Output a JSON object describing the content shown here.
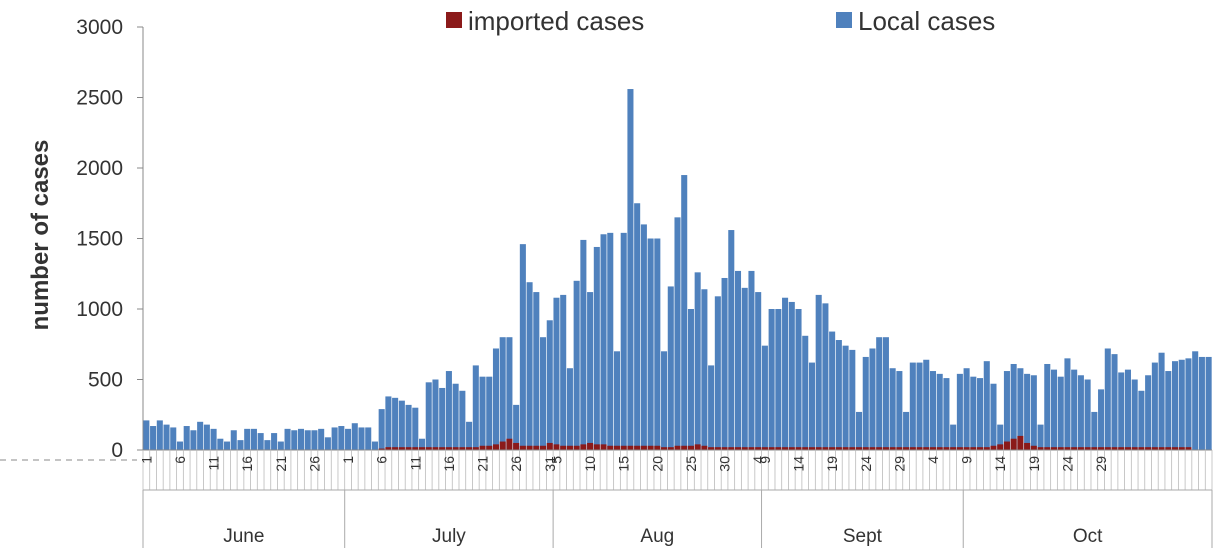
{
  "chart_data": {
    "type": "bar",
    "stacked": true,
    "title": "",
    "xlabel": "",
    "ylabel": "number of cases",
    "ylim": [
      0,
      3000
    ],
    "yticks": [
      0,
      500,
      1000,
      1500,
      2000,
      2500,
      3000
    ],
    "grid": false,
    "legend_position": "top",
    "colors": {
      "imported": "#8B1A1A",
      "local": "#4F81BD"
    },
    "series": [
      {
        "name": "imported cases",
        "values": [
          0,
          0,
          0,
          0,
          0,
          0,
          0,
          0,
          0,
          0,
          0,
          0,
          0,
          0,
          0,
          0,
          0,
          0,
          0,
          0,
          0,
          0,
          0,
          0,
          0,
          0,
          0,
          0,
          0,
          0,
          0,
          0,
          0,
          0,
          0,
          10,
          20,
          20,
          20,
          20,
          20,
          20,
          20,
          20,
          20,
          20,
          20,
          20,
          20,
          20,
          30,
          30,
          40,
          60,
          80,
          50,
          30,
          30,
          30,
          30,
          50,
          40,
          30,
          30,
          30,
          40,
          50,
          40,
          40,
          30,
          30,
          30,
          30,
          30,
          30,
          30,
          30,
          20,
          20,
          30,
          30,
          30,
          40,
          30,
          20,
          20,
          20,
          20,
          20,
          20,
          20,
          20,
          20,
          20,
          20,
          20,
          20,
          20,
          20,
          20,
          20,
          20,
          20,
          20,
          20,
          20,
          20,
          20,
          20,
          20,
          20,
          20,
          20,
          20,
          20,
          20,
          20,
          20,
          20,
          20,
          20,
          20,
          20,
          20,
          20,
          20,
          30,
          40,
          60,
          80,
          100,
          50,
          30,
          20,
          20,
          20,
          20,
          20,
          20,
          20,
          20,
          20,
          20,
          20,
          20,
          20,
          20,
          20,
          20,
          20,
          20,
          20,
          20,
          20,
          20,
          20
        ]
      },
      {
        "name": "Local cases",
        "values": [
          210,
          170,
          210,
          180,
          160,
          60,
          170,
          140,
          200,
          180,
          150,
          80,
          60,
          140,
          70,
          150,
          150,
          120,
          70,
          120,
          60,
          150,
          140,
          150,
          140,
          140,
          150,
          90,
          160,
          170,
          150,
          190,
          160,
          160,
          60,
          290,
          380,
          370,
          350,
          320,
          300,
          80,
          480,
          500,
          440,
          560,
          470,
          420,
          200,
          600,
          520,
          520,
          720,
          800,
          800,
          320,
          1460,
          1190,
          1120,
          800,
          920,
          1080,
          1100,
          580,
          1200,
          1490,
          1120,
          1440,
          1530,
          1540,
          700,
          1540,
          2560,
          1750,
          1600,
          1500,
          1500,
          700,
          1160,
          1650,
          1950,
          1000,
          1260,
          1140,
          600,
          1090,
          1220,
          1560,
          1270,
          1150,
          1270,
          1120,
          740,
          1000,
          1000,
          1080,
          1050,
          1000,
          810,
          620,
          1100,
          1040,
          840,
          780,
          740,
          710,
          270,
          660,
          720,
          800,
          800,
          580,
          560,
          270,
          620,
          620,
          640,
          560,
          540,
          510,
          180,
          540,
          580,
          520,
          510,
          630,
          470,
          180,
          560,
          610,
          580,
          540,
          530,
          180,
          610,
          570,
          520,
          650,
          570,
          530,
          500,
          270,
          430,
          720,
          680,
          550,
          570,
          500,
          420,
          530,
          620,
          690,
          560,
          630,
          640,
          650,
          700,
          660,
          660
        ]
      }
    ],
    "x_tick_labels": [
      "1",
      "6",
      "11",
      "16",
      "21",
      "26",
      "1",
      "6",
      "11",
      "16",
      "21",
      "26",
      "31",
      "5",
      "10",
      "15",
      "20",
      "25",
      "30",
      "4",
      "9",
      "14",
      "19",
      "24",
      "29",
      "4",
      "9",
      "14",
      "19",
      "24",
      "29"
    ],
    "months": [
      "June",
      "July",
      "Aug",
      "Sept",
      "Oct"
    ]
  }
}
